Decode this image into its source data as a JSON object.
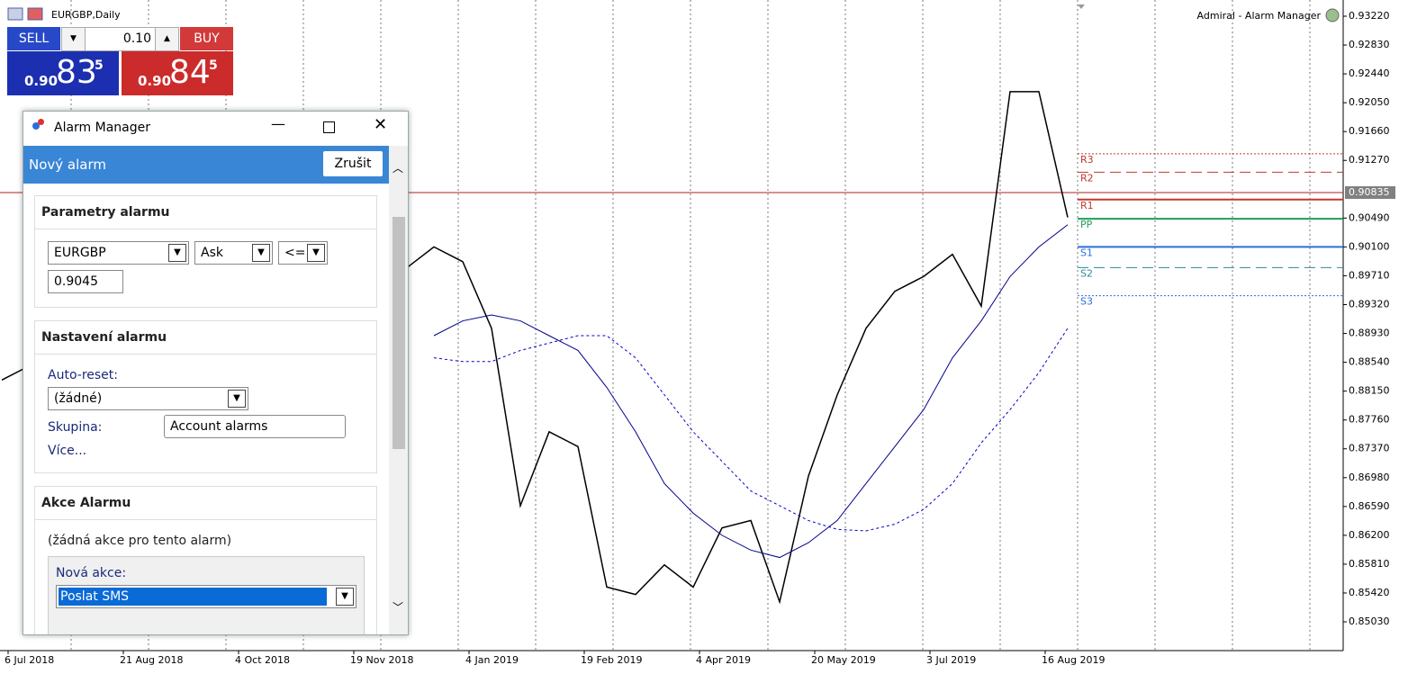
{
  "toolbar": {
    "symbol": "EURGBP,Daily",
    "indicator": "Admiral - Alarm Manager"
  },
  "trade": {
    "sell": "SELL",
    "buy": "BUY",
    "volume": "0.10",
    "sell_price": {
      "prefix": "0.90",
      "main": "83",
      "sup": "5"
    },
    "buy_price": {
      "prefix": "0.90",
      "main": "84",
      "sup": "5"
    }
  },
  "chart_data": {
    "type": "line",
    "ylim": [
      0.84641,
      0.93439
    ],
    "yticks": [
      {
        "value": 0.9322,
        "label": "0.93220"
      },
      {
        "value": 0.9283,
        "label": "0.92830"
      },
      {
        "value": 0.9244,
        "label": "0.92440"
      },
      {
        "value": 0.9205,
        "label": "0.92050"
      },
      {
        "value": 0.9166,
        "label": "0.91660"
      },
      {
        "value": 0.9127,
        "label": "0.91270"
      },
      {
        "value": 0.9049,
        "label": "0.90490"
      },
      {
        "value": 0.901,
        "label": "0.90100"
      },
      {
        "value": 0.8971,
        "label": "0.89710"
      },
      {
        "value": 0.8932,
        "label": "0.89320"
      },
      {
        "value": 0.8893,
        "label": "0.88930"
      },
      {
        "value": 0.8854,
        "label": "0.88540"
      },
      {
        "value": 0.8815,
        "label": "0.88150"
      },
      {
        "value": 0.8776,
        "label": "0.87760"
      },
      {
        "value": 0.8737,
        "label": "0.87370"
      },
      {
        "value": 0.8698,
        "label": "0.86980"
      },
      {
        "value": 0.8659,
        "label": "0.86590"
      },
      {
        "value": 0.862,
        "label": "0.86200"
      },
      {
        "value": 0.8581,
        "label": "0.85810"
      },
      {
        "value": 0.8542,
        "label": "0.85420"
      },
      {
        "value": 0.8503,
        "label": "0.85030"
      }
    ],
    "x_labels": [
      "6 Jul 2018",
      "21 Aug 2018",
      "4 Oct 2018",
      "19 Nov 2018",
      "4 Jan 2019",
      "19 Feb 2019",
      "4 Apr 2019",
      "20 May 2019",
      "3 Jul 2019",
      "16 Aug 2019"
    ],
    "current_price": {
      "value": 0.90835,
      "label": "0.90835",
      "color": "#b22222"
    },
    "series": [
      {
        "color": "#000000",
        "values": [
          0.883,
          0.885,
          0.887,
          0.884,
          0.881,
          0.879,
          0.882,
          0.886,
          0.889,
          0.893,
          0.897,
          0.9,
          0.902,
          0.9,
          0.898,
          0.901,
          0.899,
          0.89,
          0.866,
          0.876,
          0.874,
          0.855,
          0.854,
          0.858,
          0.855,
          0.863,
          0.864,
          0.853,
          0.87,
          0.881,
          0.89,
          0.895,
          0.897,
          0.9,
          0.893,
          0.922,
          0.922,
          0.905
        ]
      },
      {
        "color": "#00008b",
        "values": [
          0.879,
          null,
          null,
          null,
          null,
          null,
          null,
          null,
          null,
          null,
          null,
          null,
          null,
          null,
          null,
          0.889,
          0.891,
          0.8918,
          0.891,
          0.889,
          0.887,
          0.882,
          0.876,
          0.869,
          0.865,
          0.862,
          0.86,
          0.859,
          0.861,
          0.864,
          0.869,
          0.874,
          0.879,
          0.886,
          0.891,
          0.897,
          0.901,
          0.904
        ]
      },
      {
        "color": "#0000cd",
        "dashed": true,
        "values": [
          0.877,
          null,
          null,
          null,
          null,
          null,
          null,
          null,
          null,
          null,
          null,
          null,
          null,
          null,
          null,
          0.886,
          0.8855,
          0.8855,
          0.887,
          0.888,
          0.889,
          0.889,
          0.886,
          0.881,
          0.876,
          0.872,
          0.868,
          0.866,
          0.864,
          0.8628,
          0.8626,
          0.8635,
          0.8655,
          0.869,
          0.8745,
          0.879,
          0.884,
          0.89
        ]
      }
    ],
    "levels": [
      {
        "name": "R3",
        "value": 0.9136,
        "color": "#c0392b",
        "style": "dotted"
      },
      {
        "name": "R2",
        "value": 0.9111,
        "color": "#c0392b",
        "style": "dashed"
      },
      {
        "name": "R1",
        "value": 0.9074,
        "color": "#c0392b",
        "style": "solid"
      },
      {
        "name": "PP",
        "value": 0.9048,
        "color": "#1e9e5a",
        "style": "solid"
      },
      {
        "name": "S1",
        "value": 0.901,
        "color": "#2a6fdb",
        "style": "solid"
      },
      {
        "name": "S2",
        "value": 0.8982,
        "color": "#2a8a9a",
        "style": "dashed"
      },
      {
        "name": "S3",
        "value": 0.8944,
        "color": "#2a6fdb",
        "style": "dotted"
      }
    ]
  },
  "dialog": {
    "title": "Alarm Manager",
    "header": "Nový alarm",
    "cancel": "Zrušit",
    "params": {
      "title": "Parametry alarmu",
      "symbol": "EURGBP",
      "price": "Ask",
      "operator": "<=",
      "value": "0.9045"
    },
    "settings": {
      "title": "Nastavení alarmu",
      "auto_reset_label": "Auto-reset:",
      "auto_reset": "(žádné)",
      "group_label": "Skupina:",
      "group": "Account alarms",
      "more": "Více..."
    },
    "actions": {
      "title": "Akce Alarmu",
      "empty": "(žádná akce pro tento alarm)",
      "new_label": "Nová akce:",
      "new": "Poslat SMS"
    }
  }
}
